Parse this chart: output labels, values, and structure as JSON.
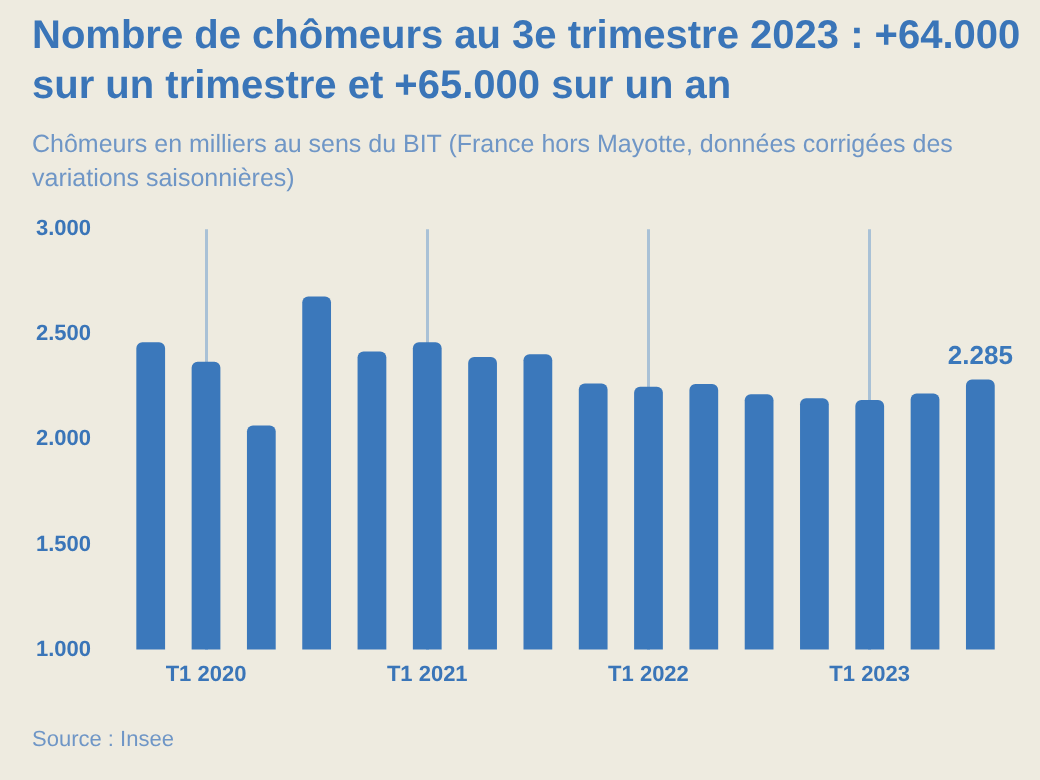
{
  "chart_data": {
    "type": "bar",
    "title": "Nombre de chômeurs au 3e trimestre 2023 : +64.000 sur un trimestre et +65.000 sur un an",
    "subtitle": "Chômeurs en milliers au sens du BIT (France hors Mayotte, données corrigées des variations saisonnières)",
    "categories": [
      null,
      "T1 2020",
      null,
      null,
      null,
      "T1 2021",
      null,
      null,
      null,
      "T1 2022",
      null,
      null,
      null,
      "T1 2023",
      null,
      null
    ],
    "values": [
      2462,
      2370,
      2066,
      2680,
      2418,
      2462,
      2392,
      2405,
      2266,
      2250,
      2263,
      2215,
      2196,
      2187,
      2218,
      2285
    ],
    "value_labels": [
      null,
      null,
      null,
      null,
      null,
      null,
      null,
      null,
      null,
      null,
      null,
      null,
      null,
      null,
      null,
      "2.285"
    ],
    "color": "#3b78bb",
    "ylim": [
      1000,
      3000
    ],
    "yticks": [
      {
        "value": 1000,
        "label": "1.000"
      },
      {
        "value": 1500,
        "label": "1.500"
      },
      {
        "value": 2000,
        "label": "2.000"
      },
      {
        "value": 2500,
        "label": "2.500"
      },
      {
        "value": 3000,
        "label": "3.000"
      }
    ],
    "grid": "x",
    "legend": false,
    "annotations": [
      "Source : Insee"
    ]
  }
}
